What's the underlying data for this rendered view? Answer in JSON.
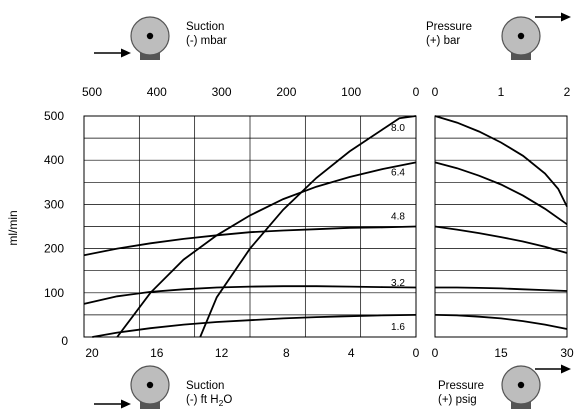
{
  "chart_data": {
    "type": "line",
    "ylabel": "ml/min",
    "y_ticks": [
      "0",
      "100",
      "200",
      "300",
      "400",
      "500"
    ],
    "ylim": [
      0,
      500
    ],
    "suction": {
      "top_axis": {
        "label_line1": "Suction",
        "label_line2": "(-) mbar",
        "ticks": [
          "500",
          "400",
          "300",
          "200",
          "100",
          "0"
        ],
        "range": [
          500,
          0
        ]
      },
      "bottom_axis": {
        "label_line1": "Suction",
        "label_line2_prefix": "(-) ft H",
        "label_line2_sub": "2",
        "label_line2_suffix": "O",
        "ticks": [
          "20",
          "16",
          "12",
          "8",
          "4",
          "0"
        ],
        "range": [
          20,
          0
        ]
      },
      "series": [
        {
          "name": "8.0",
          "x": [
            13.0,
            12,
            10,
            8,
            6,
            4,
            2,
            1,
            0
          ],
          "y": [
            0,
            90,
            200,
            288,
            360,
            420,
            470,
            495,
            500
          ]
        },
        {
          "name": "6.4",
          "x": [
            18.0,
            16,
            14,
            12,
            10,
            8,
            6,
            4,
            2,
            0
          ],
          "y": [
            0,
            100,
            175,
            230,
            275,
            312,
            340,
            362,
            380,
            395
          ]
        },
        {
          "name": "4.8",
          "x": [
            20,
            18,
            16,
            14,
            12,
            10,
            8,
            6,
            4,
            2,
            0
          ],
          "y": [
            185,
            200,
            212,
            222,
            230,
            237,
            241,
            244,
            247,
            248,
            250
          ]
        },
        {
          "name": "3.2",
          "x": [
            20,
            18,
            16,
            14,
            12,
            10,
            8,
            6,
            4,
            2,
            0
          ],
          "y": [
            75,
            92,
            102,
            108,
            112,
            114,
            115,
            115,
            114,
            113,
            112
          ]
        },
        {
          "name": "1.6",
          "x": [
            19.5,
            18,
            16,
            14,
            12,
            10,
            8,
            6,
            4,
            2,
            0
          ],
          "y": [
            0,
            10,
            20,
            28,
            34,
            38,
            42,
            45,
            47,
            49,
            50
          ]
        }
      ]
    },
    "pressure": {
      "top_axis": {
        "label_line1": "Pressure",
        "label_line2": "(+) bar",
        "ticks": [
          "0",
          "1",
          "2"
        ],
        "range": [
          0,
          2
        ]
      },
      "bottom_axis": {
        "label_line1": "Pressure",
        "label_line2": "(+) psig",
        "ticks": [
          "0",
          "15",
          "30"
        ],
        "range": [
          0,
          30
        ]
      },
      "series": [
        {
          "name": "8.0",
          "x": [
            0,
            5,
            10,
            15,
            20,
            25,
            28,
            30
          ],
          "y": [
            500,
            485,
            465,
            440,
            410,
            370,
            335,
            295
          ]
        },
        {
          "name": "6.4",
          "x": [
            0,
            5,
            10,
            15,
            20,
            25,
            30
          ],
          "y": [
            395,
            382,
            365,
            345,
            320,
            290,
            255
          ]
        },
        {
          "name": "4.8",
          "x": [
            0,
            5,
            10,
            15,
            20,
            25,
            30
          ],
          "y": [
            250,
            243,
            235,
            226,
            216,
            204,
            190
          ]
        },
        {
          "name": "3.2",
          "x": [
            0,
            5,
            10,
            15,
            20,
            25,
            30
          ],
          "y": [
            112,
            112,
            111,
            110,
            108,
            106,
            104
          ]
        },
        {
          "name": "1.6",
          "x": [
            0,
            5,
            10,
            15,
            20,
            25,
            30
          ],
          "y": [
            50,
            49,
            46,
            42,
            36,
            28,
            18
          ]
        }
      ]
    },
    "grid": true
  }
}
